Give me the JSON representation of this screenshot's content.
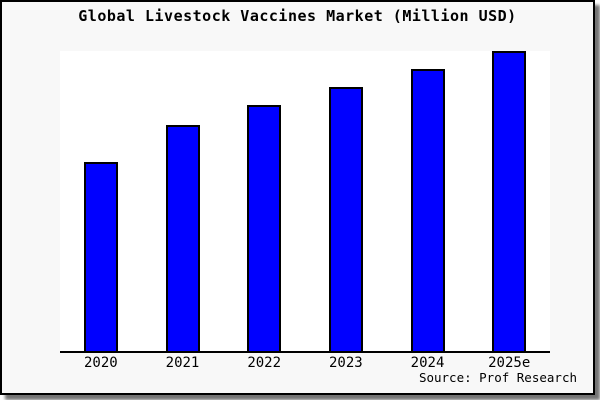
{
  "window": {
    "background": "#f8f8f8",
    "border_color": "#000000",
    "plot_background": "#ffffff"
  },
  "chart": {
    "title": "Global Livestock Vaccines Market (Million USD)",
    "source": "Source: Prof Research"
  },
  "chart_data": {
    "type": "bar",
    "title": "Global Livestock Vaccines Market (Million USD)",
    "categories": [
      "2020",
      "2021",
      "2022",
      "2023",
      "2024",
      "2025e"
    ],
    "values": [
      63,
      75.3,
      82,
      88,
      94,
      100
    ],
    "values_note": "y-axis has no tick labels; values are estimated bar heights as percent of tallest (2025e) bar",
    "xlabel": "",
    "ylabel": "",
    "ylim": [
      0,
      100
    ],
    "gridlines": false,
    "legend": false,
    "bar_color": "#0000ff",
    "bar_border_color": "#000000",
    "axis_color": "#000000",
    "source_note": "Source: Prof Research"
  }
}
